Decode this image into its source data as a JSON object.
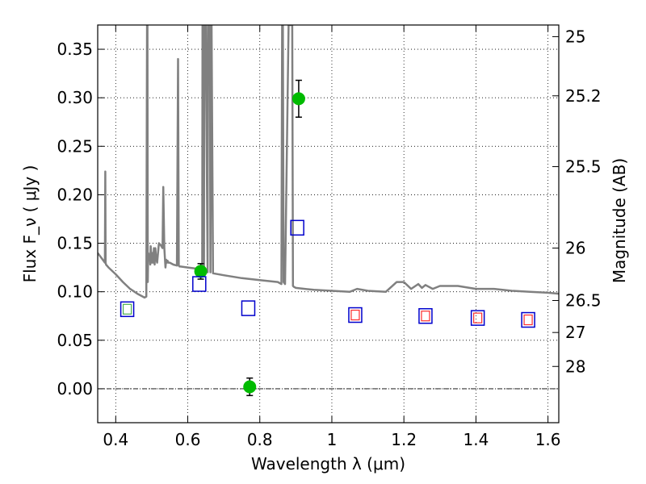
{
  "chart_data": {
    "type": "scatter",
    "xlabel": "Wavelength  λ (μm)",
    "ylabel": "Flux  F_ν  ( μJy )",
    "ylabel_right": "Magnitude (AB)",
    "xlim": [
      0.35,
      1.63
    ],
    "ylim": [
      -0.035,
      0.375
    ],
    "grid": true,
    "x_ticks": [
      0.4,
      0.6,
      0.8,
      1.0,
      1.2,
      1.4,
      1.6
    ],
    "x_tick_labels": [
      "0.4",
      "0.6",
      "0.8",
      "1",
      "1.2",
      "1.4",
      "1.6"
    ],
    "y_ticks": [
      0.0,
      0.05,
      0.1,
      0.15,
      0.2,
      0.25,
      0.3,
      0.35
    ],
    "y_tick_labels": [
      "0.00",
      "0.05",
      "0.10",
      "0.15",
      "0.20",
      "0.25",
      "0.30",
      "0.35"
    ],
    "right_ticks": [
      {
        "label": "25",
        "flux": 0.363
      },
      {
        "label": "25.2",
        "flux": 0.302
      },
      {
        "label": "25.5",
        "flux": 0.229
      },
      {
        "label": "26",
        "flux": 0.145
      },
      {
        "label": "26.5",
        "flux": 0.091
      },
      {
        "label": "27",
        "flux": 0.058
      },
      {
        "label": "28",
        "flux": 0.023
      }
    ],
    "series": [
      {
        "kind": "line",
        "color": "#808080",
        "x": [
          0.35,
          0.36,
          0.37,
          0.371,
          0.372,
          0.373,
          0.38,
          0.4,
          0.42,
          0.44,
          0.46,
          0.48,
          0.485,
          0.487,
          0.488,
          0.489,
          0.49,
          0.495,
          0.496,
          0.497,
          0.5,
          0.502,
          0.504,
          0.506,
          0.508,
          0.51,
          0.512,
          0.515,
          0.52,
          0.525,
          0.53,
          0.532,
          0.535,
          0.538,
          0.54,
          0.542,
          0.544,
          0.546,
          0.55,
          0.56,
          0.57,
          0.573,
          0.575,
          0.577,
          0.58,
          0.6,
          0.62,
          0.64,
          0.641,
          0.643,
          0.645,
          0.646,
          0.65,
          0.655,
          0.656,
          0.6563,
          0.657,
          0.66,
          0.661,
          0.663,
          0.665,
          0.666,
          0.67,
          0.7,
          0.75,
          0.8,
          0.85,
          0.86,
          0.862,
          0.864,
          0.866,
          0.87,
          0.88,
          0.885,
          0.887,
          0.89,
          0.892,
          0.895,
          0.9,
          0.95,
          1.0,
          1.05,
          1.07,
          1.1,
          1.15,
          1.18,
          1.2,
          1.22,
          1.24,
          1.25,
          1.26,
          1.28,
          1.3,
          1.35,
          1.4,
          1.45,
          1.5,
          1.55,
          1.6,
          1.63
        ],
        "y": [
          0.14,
          0.135,
          0.13,
          0.224,
          0.13,
          0.128,
          0.125,
          0.118,
          0.11,
          0.103,
          0.098,
          0.094,
          0.095,
          0.375,
          0.375,
          0.11,
          0.14,
          0.135,
          0.128,
          0.147,
          0.13,
          0.14,
          0.13,
          0.145,
          0.128,
          0.145,
          0.135,
          0.13,
          0.15,
          0.148,
          0.145,
          0.208,
          0.145,
          0.125,
          0.133,
          0.13,
          0.132,
          0.13,
          0.13,
          0.128,
          0.127,
          0.34,
          0.127,
          0.126,
          0.126,
          0.125,
          0.124,
          0.122,
          0.375,
          0.375,
          0.122,
          0.375,
          0.375,
          0.12,
          0.375,
          0.375,
          0.375,
          0.375,
          0.375,
          0.12,
          0.375,
          0.375,
          0.119,
          0.117,
          0.114,
          0.112,
          0.11,
          0.108,
          0.375,
          0.375,
          0.11,
          0.108,
          0.375,
          0.375,
          0.375,
          0.375,
          0.106,
          0.105,
          0.104,
          0.102,
          0.101,
          0.1,
          0.103,
          0.101,
          0.1,
          0.11,
          0.11,
          0.103,
          0.108,
          0.104,
          0.107,
          0.103,
          0.106,
          0.106,
          0.103,
          0.103,
          0.101,
          0.1,
          0.099,
          0.098
        ]
      },
      {
        "kind": "points",
        "marker": "circle",
        "color": "#00bb00",
        "x": [
          0.636,
          0.772,
          0.908
        ],
        "y": [
          0.121,
          0.002,
          0.299
        ],
        "yerr": [
          0.008,
          0.009,
          0.019
        ]
      },
      {
        "kind": "points",
        "marker": "square-open",
        "color": "#0000cc",
        "x": [
          0.432,
          0.632,
          0.768,
          0.904,
          1.065,
          1.26,
          1.405,
          1.545
        ],
        "y": [
          0.082,
          0.108,
          0.083,
          0.166,
          0.076,
          0.075,
          0.073,
          0.071
        ]
      },
      {
        "kind": "points",
        "marker": "square-open-small",
        "color": "#4caf50",
        "x": [
          0.432
        ],
        "y": [
          0.082
        ]
      },
      {
        "kind": "points",
        "marker": "square-open-small",
        "color": "#ff2d2d",
        "x": [
          1.065,
          1.26,
          1.405,
          1.545
        ],
        "y": [
          0.076,
          0.075,
          0.073,
          0.071
        ]
      }
    ]
  }
}
